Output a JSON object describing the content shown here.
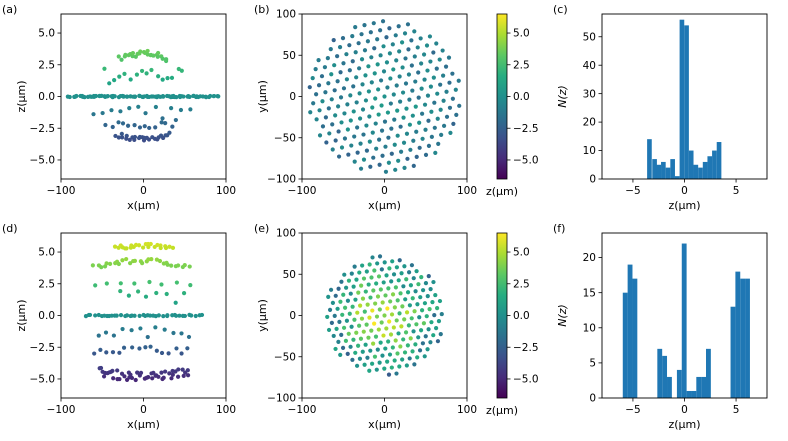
{
  "figure": {
    "panel_labels": [
      "(a)",
      "(b)",
      "(c)",
      "(d)",
      "(e)",
      "(f)"
    ],
    "colormap": "viridis",
    "colorbar_label": "z(μm)",
    "colorbar_ticks": [
      "5.0",
      "2.5",
      "0.0",
      "−2.5",
      "−5.0"
    ],
    "colors": {
      "bar": "#1f77b4",
      "axes": "#000000",
      "background": "#ffffff"
    }
  },
  "chart_data": [
    {
      "id": "a",
      "type": "scatter",
      "label": "(a)",
      "xlabel": "x(μm)",
      "ylabel": "z(μm)",
      "xlim": [
        -100,
        100
      ],
      "ylim": [
        -6.5,
        6.5
      ],
      "xticks": [
        "−100",
        "0",
        "100"
      ],
      "yticks": [
        "5.0",
        "2.5",
        "0.0",
        "−2.5",
        "−5.0"
      ],
      "layers": [
        {
          "z": 3.4,
          "xmin": -28,
          "xmax": 28,
          "count": 26,
          "jitter": 0.25,
          "curve": 0.4
        },
        {
          "z": 1.8,
          "xmin": -48,
          "xmax": 48,
          "count": 16,
          "jitter": 0.8,
          "curve": 0.3
        },
        {
          "z": 0.0,
          "xmin": -90,
          "xmax": 90,
          "count": 90,
          "jitter": 0.05,
          "curve": 0.0
        },
        {
          "z": -1.3,
          "xmin": -60,
          "xmax": 55,
          "count": 12,
          "jitter": 0.5,
          "curve": 0.0
        },
        {
          "z": -2.3,
          "xmin": -45,
          "xmax": 40,
          "count": 14,
          "jitter": 0.3,
          "curve": 0.2
        },
        {
          "z": -3.3,
          "xmin": -32,
          "xmax": 30,
          "count": 26,
          "jitter": 0.2,
          "curve": 0.3
        }
      ],
      "colorbar": false
    },
    {
      "id": "b",
      "type": "scatter",
      "label": "(b)",
      "xlabel": "x(μm)",
      "ylabel": "y(μm)",
      "xlim": [
        -100,
        100
      ],
      "ylim": [
        -100,
        100
      ],
      "xticks": [
        "−100",
        "0",
        "100"
      ],
      "yticks": [
        "100",
        "50",
        "0",
        "−50",
        "−100"
      ],
      "disk": {
        "radius": 92,
        "spacing": 11.5,
        "rotation_deg": 12,
        "center_value": 0.0,
        "outer_value": -1.5
      },
      "colorbar": true,
      "color_range": [
        -6.5,
        6.5
      ]
    },
    {
      "id": "c",
      "type": "bar",
      "label": "(c)",
      "xlabel": "z(μm)",
      "ylabel": "N(z)",
      "xlim": [
        -8,
        8
      ],
      "ylim": [
        0,
        58
      ],
      "xticks": [
        "−5",
        "0",
        "5"
      ],
      "yticks": [
        "0",
        "10",
        "20",
        "30",
        "40",
        "50"
      ],
      "bin_width": 0.45,
      "bins": [
        {
          "x": -3.4,
          "n": 14
        },
        {
          "x": -2.9,
          "n": 7
        },
        {
          "x": -2.5,
          "n": 5
        },
        {
          "x": -2.05,
          "n": 6
        },
        {
          "x": -1.6,
          "n": 4
        },
        {
          "x": -1.15,
          "n": 7
        },
        {
          "x": -0.7,
          "n": 1
        },
        {
          "x": -0.25,
          "n": 56
        },
        {
          "x": 0.2,
          "n": 54
        },
        {
          "x": 0.65,
          "n": 10
        },
        {
          "x": 1.1,
          "n": 5
        },
        {
          "x": 1.55,
          "n": 4
        },
        {
          "x": 2.0,
          "n": 6
        },
        {
          "x": 2.45,
          "n": 8
        },
        {
          "x": 2.9,
          "n": 10
        },
        {
          "x": 3.35,
          "n": 13
        }
      ]
    },
    {
      "id": "d",
      "type": "scatter",
      "label": "(d)",
      "xlabel": "x(μm)",
      "ylabel": "z(μm)",
      "xlim": [
        -100,
        100
      ],
      "ylim": [
        -6.5,
        6.5
      ],
      "xticks": [
        "−100",
        "0",
        "100"
      ],
      "yticks": [
        "5.0",
        "2.5",
        "0.0",
        "−2.5",
        "−5.0"
      ],
      "layers": [
        {
          "z": 5.5,
          "xmin": -35,
          "xmax": 35,
          "count": 24,
          "jitter": 0.15,
          "curve": 0.2
        },
        {
          "z": 4.3,
          "xmin": -60,
          "xmax": 55,
          "count": 30,
          "jitter": 0.2,
          "curve": 0.5
        },
        {
          "z": 2.5,
          "xmin": -60,
          "xmax": 55,
          "count": 8,
          "jitter": 0.2,
          "curve": 0.0
        },
        {
          "z": 1.5,
          "xmin": -30,
          "xmax": 50,
          "count": 8,
          "jitter": 0.5,
          "curve": 0.0
        },
        {
          "z": 0.0,
          "xmin": -70,
          "xmax": 70,
          "count": 40,
          "jitter": 0.05,
          "curve": 0.0
        },
        {
          "z": -1.3,
          "xmin": -55,
          "xmax": 55,
          "count": 12,
          "jitter": 0.4,
          "curve": 0.0
        },
        {
          "z": -2.7,
          "xmin": -60,
          "xmax": 55,
          "count": 16,
          "jitter": 0.3,
          "curve": 0.0
        },
        {
          "z": -4.8,
          "xmin": -55,
          "xmax": 55,
          "count": 50,
          "jitter": 0.35,
          "curve": 0.4
        }
      ],
      "colorbar": false
    },
    {
      "id": "e",
      "type": "scatter",
      "label": "(e)",
      "xlabel": "x(μm)",
      "ylabel": "y(μm)",
      "xlim": [
        -100,
        100
      ],
      "ylim": [
        -100,
        100
      ],
      "xticks": [
        "−100",
        "0",
        "100"
      ],
      "yticks": [
        "100",
        "50",
        "0",
        "−50",
        "−100"
      ],
      "disk": {
        "radius": 72,
        "spacing": 9.2,
        "rotation_deg": 8,
        "center_value": 6.0,
        "outer_value": -1.0
      },
      "colorbar": true,
      "color_range": [
        -6.5,
        6.5
      ]
    },
    {
      "id": "f",
      "type": "bar",
      "label": "(f)",
      "xlabel": "z(μm)",
      "ylabel": "N(z)",
      "xlim": [
        -8,
        8
      ],
      "ylim": [
        0,
        23.5
      ],
      "xticks": [
        "−5",
        "0",
        "5"
      ],
      "yticks": [
        "0",
        "5",
        "10",
        "15",
        "20"
      ],
      "bin_width": 0.47,
      "bins": [
        {
          "x": -5.75,
          "n": 15
        },
        {
          "x": -5.28,
          "n": 19
        },
        {
          "x": -4.81,
          "n": 17
        },
        {
          "x": -2.4,
          "n": 7
        },
        {
          "x": -1.93,
          "n": 6
        },
        {
          "x": -1.46,
          "n": 3
        },
        {
          "x": -0.5,
          "n": 4
        },
        {
          "x": -0.03,
          "n": 22
        },
        {
          "x": 0.44,
          "n": 1
        },
        {
          "x": 0.91,
          "n": 1
        },
        {
          "x": 1.38,
          "n": 3
        },
        {
          "x": 1.85,
          "n": 3
        },
        {
          "x": 2.32,
          "n": 7
        },
        {
          "x": 4.7,
          "n": 13
        },
        {
          "x": 5.17,
          "n": 18
        },
        {
          "x": 5.64,
          "n": 17
        },
        {
          "x": 6.11,
          "n": 17
        }
      ]
    }
  ]
}
